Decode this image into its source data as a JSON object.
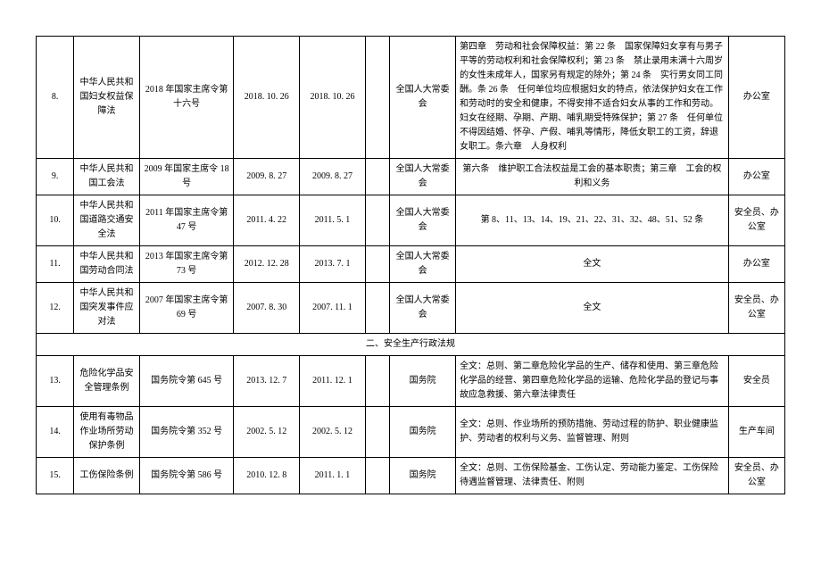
{
  "rows": [
    {
      "num": "8.",
      "title": "中华人民共和国妇女权益保障法",
      "decree": "2018 年国家主席令第十六号",
      "date1": "2018. 10. 26",
      "date2": "2018. 10. 26",
      "issuer": "全国人大常委会",
      "content": "第四章　劳动和社会保障权益：第 22 条　国家保障妇女享有与男子平等的劳动权利和社会保障权利；第 23 条　禁止录用未满十六周岁的女性未成年人，国家另有规定的除外；第 24 条　实行男女同工同酬。条 26 条　任何单位均应根据妇女的特点，依法保护妇女在工作和劳动时的安全和健康，不得安排不适合妇女从事的工作和劳动。妇女在经期、孕期、产期、哺乳期受特殊保护；第 27 条　任何单位不得因结婚、怀孕、产假、哺乳等情形，降低女职工的工资，辞退女职工。条六章　人身权利",
      "dept": "办公室"
    },
    {
      "num": "9.",
      "title": "中华人民共和国工会法",
      "decree": "2009 年国家主席令 18 号",
      "date1": "2009. 8. 27",
      "date2": "2009. 8. 27",
      "issuer": "全国人大常委会",
      "content": "第六条　维护职工合法权益是工会的基本职责；第三章　工会的权利和义务",
      "dept": "办公室"
    },
    {
      "num": "10.",
      "title": "中华人民共和国道路交通安全法",
      "decree": "2011 年国家主席令第 47 号",
      "date1": "2011. 4. 22",
      "date2": "2011. 5. 1",
      "issuer": "全国人大常委会",
      "content": "第 8、11、13、14、19、21、22、31、32、48、51、52 条",
      "dept": "安全员、办公室"
    },
    {
      "num": "11.",
      "title": "中华人民共和国劳动合同法",
      "decree": "2013 年国家主席令第 73 号",
      "date1": "2012. 12. 28",
      "date2": "2013. 7. 1",
      "issuer": "全国人大常委会",
      "content": "全文",
      "dept": "办公室"
    },
    {
      "num": "12.",
      "title": "中华人民共和国突发事件应对法",
      "decree": "2007 年国家主席令第 69 号",
      "date1": "2007. 8. 30",
      "date2": "2007. 11. 1",
      "issuer": "全国人大常委会",
      "content": "全文",
      "dept": "安全员、办公室"
    }
  ],
  "section": "二、安全生产行政法规",
  "rows2": [
    {
      "num": "13.",
      "title": "危险化学品安全管理条例",
      "decree": "国务院令第 645 号",
      "date1": "2013. 12. 7",
      "date2": "2011. 12. 1",
      "issuer": "国务院",
      "content": "全文：总则、第二章危险化学品的生产、储存和使用、第三章危险化学品的经营、第四章危险化学品的运输、危险化学品的登记与事故应急救援、第六章法律责任",
      "dept": "安全员"
    },
    {
      "num": "14.",
      "title": "使用有毒物品作业场所劳动保护条例",
      "decree": "国务院令第 352 号",
      "date1": "2002. 5. 12",
      "date2": "2002. 5. 12",
      "issuer": "国务院",
      "content": "全文：总则、作业场所的预防措施、劳动过程的防护、职业健康监护、劳动者的权利与义务、监督管理、附则",
      "dept": "生产车间"
    },
    {
      "num": "15.",
      "title": "工伤保险条例",
      "decree": "国务院令第 586 号",
      "date1": "2010. 12. 8",
      "date2": "2011. 1. 1",
      "issuer": "国务院",
      "content": "全文：总则、工伤保险基金、工伤认定、劳动能力鉴定、工伤保险待遇监督管理、法律责任、附则",
      "dept": "安全员、办公室"
    }
  ]
}
